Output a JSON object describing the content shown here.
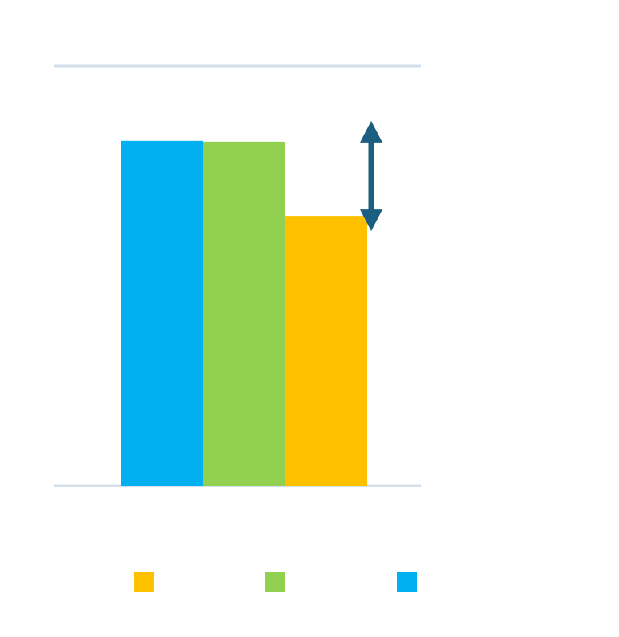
{
  "chart_data": {
    "type": "bar",
    "categories": [
      null
    ],
    "series": [
      {
        "color": "#00b0f0",
        "values": [
          82.2
        ]
      },
      {
        "color": "#92d050",
        "values": [
          82
        ]
      },
      {
        "color": "#ffc000",
        "values": [
          64.3
        ]
      }
    ],
    "ylim": [
      0,
      100
    ],
    "grid": true
  }
}
